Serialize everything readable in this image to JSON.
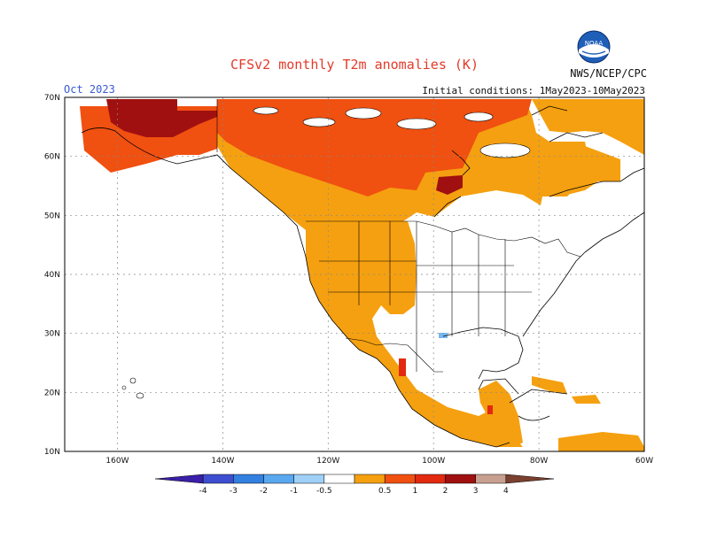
{
  "title": "CFSv2 monthly T2m anomalies (K)",
  "month": "Oct 2023",
  "initial_conditions": "Initial conditions:  1May2023-10May2023",
  "organization": "NWS/NCEP/CPC",
  "logo_text": "NOAA",
  "map": {
    "lon_labels": [
      "160W",
      "140W",
      "120W",
      "100W",
      "80W",
      "60W"
    ],
    "lat_labels": [
      "70N",
      "60N",
      "50N",
      "40N",
      "30N",
      "20N",
      "10N"
    ],
    "lon_range": [
      -170,
      -60
    ],
    "lat_range": [
      10,
      70
    ]
  },
  "legend": {
    "ticks": [
      "-4",
      "-3",
      "-2",
      "-1",
      "-0.5",
      "0.5",
      "1",
      "2",
      "3",
      "4"
    ],
    "colors": [
      "#3a1fa8",
      "#3e4ed0",
      "#3380e0",
      "#5aa8f0",
      "#9fd0f8",
      "#ffffff",
      "#f5a010",
      "#f05010",
      "#e22a10",
      "#a01010",
      "#c8a090",
      "#7a4030"
    ]
  }
}
